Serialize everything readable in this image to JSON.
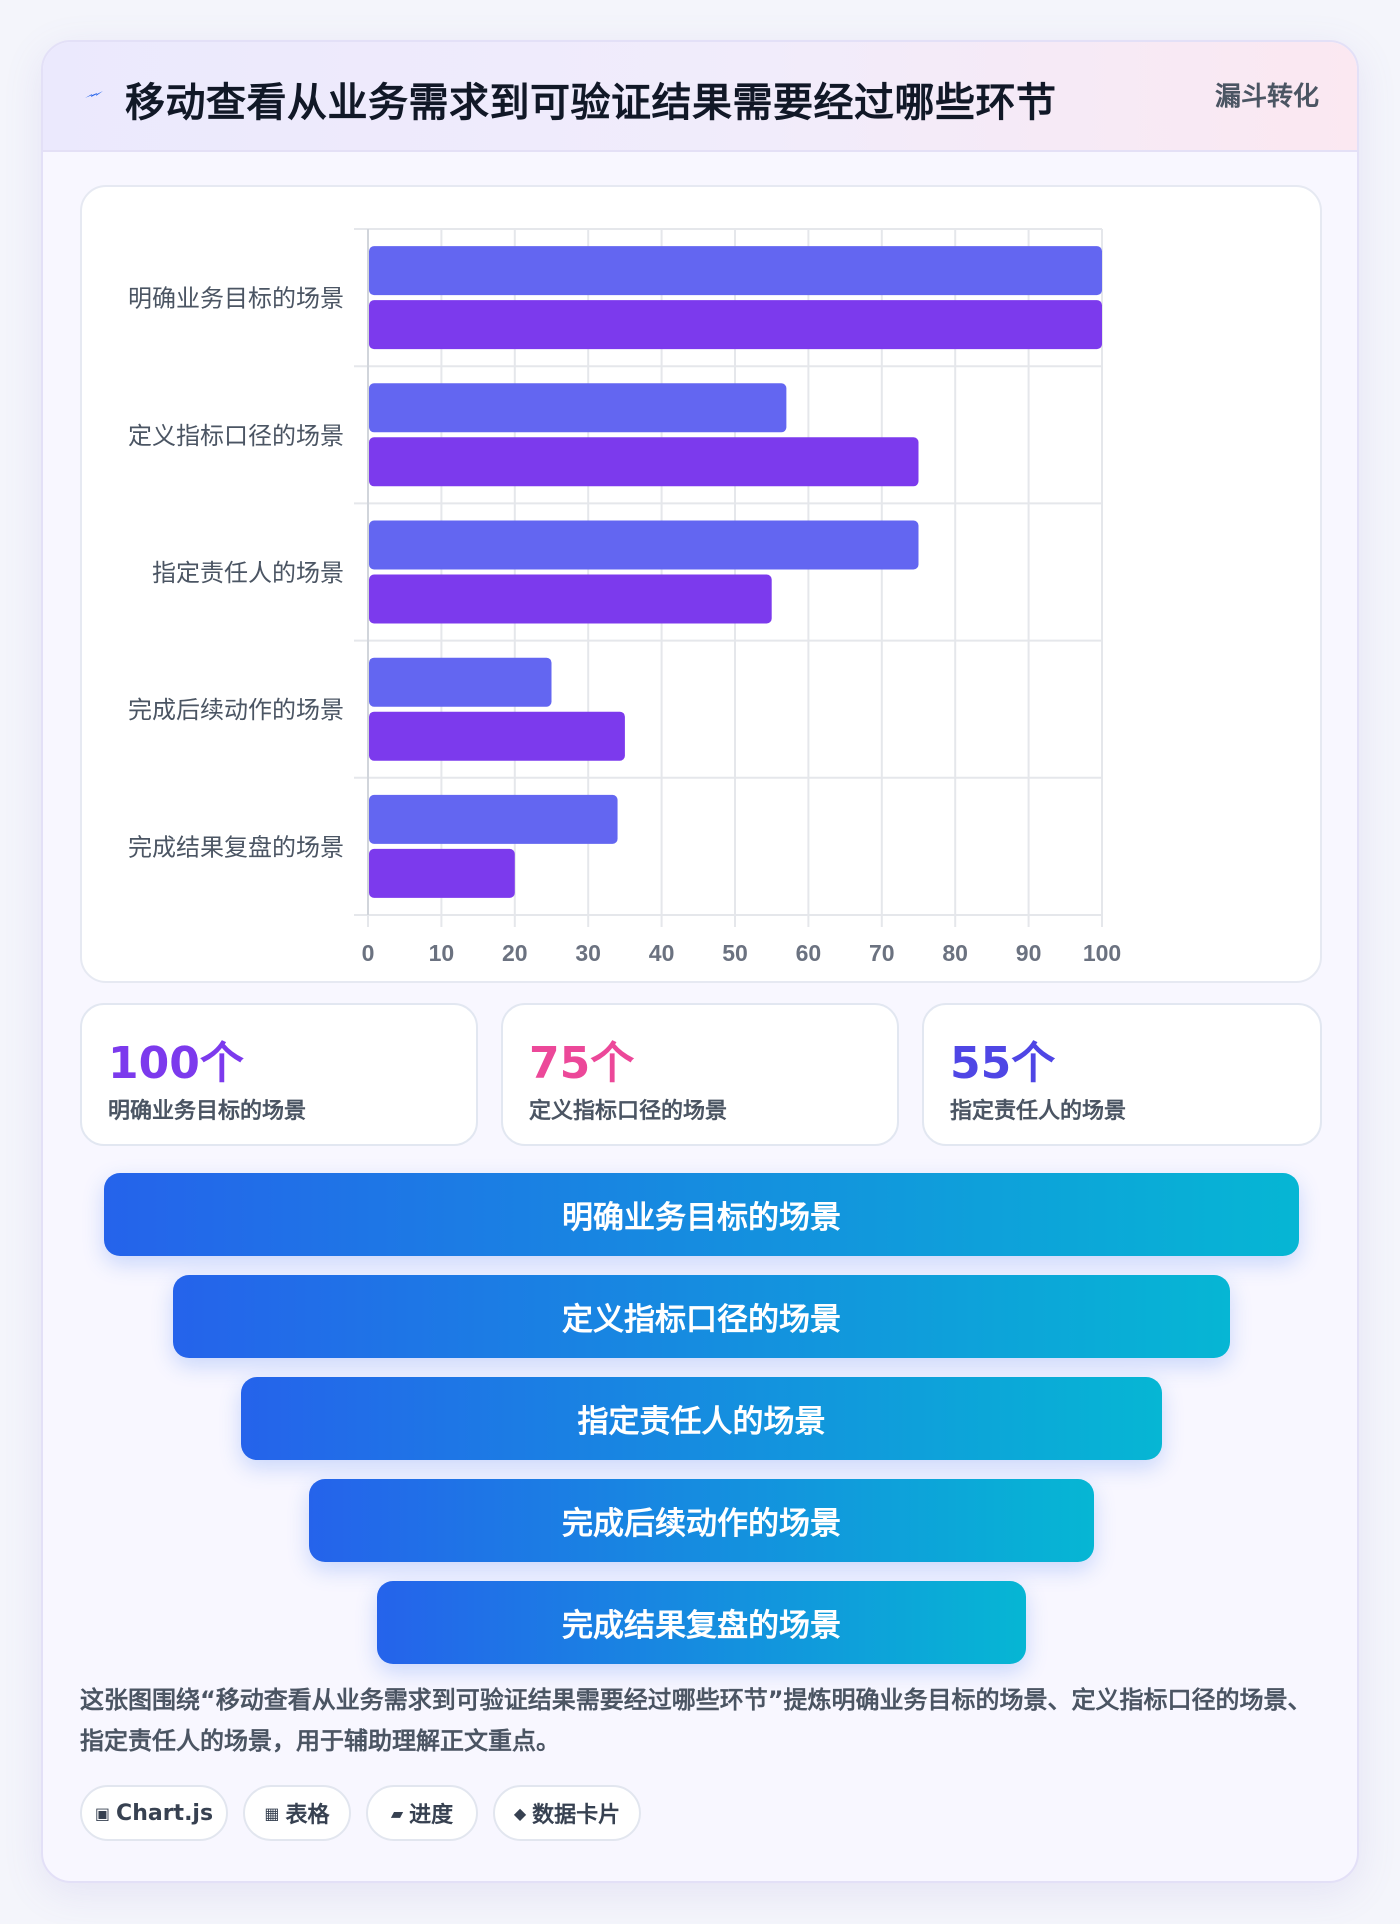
{
  "header": {
    "title": "移动查看从业务需求到可验证结果需要经过哪些环节",
    "tag": "漏斗转化",
    "icon": "bolt-icon"
  },
  "chart_data": {
    "type": "bar",
    "orientation": "horizontal",
    "categories": [
      "明确业务目标的场景",
      "定义指标口径的场景",
      "指定责任人的场景",
      "完成后续动作的场景",
      "完成结果复盘的场景"
    ],
    "series": [
      {
        "values": [
          100,
          57,
          75,
          25,
          34
        ],
        "color": "#6366f1"
      },
      {
        "values": [
          100,
          75,
          55,
          35,
          20
        ],
        "color": "#7c3aed"
      }
    ],
    "xlim": [
      0,
      100
    ],
    "xticks": [
      0,
      10,
      20,
      30,
      40,
      50,
      60,
      70,
      80,
      90,
      100
    ],
    "grid": true,
    "legend": "none"
  },
  "stats": [
    {
      "value": "100个",
      "label": "明确业务目标的场景",
      "color": "#7c3aed"
    },
    {
      "value": "75个",
      "label": "定义指标口径的场景",
      "color": "#ec4899"
    },
    {
      "value": "55个",
      "label": "指定责任人的场景",
      "color": "#4f46e5"
    }
  ],
  "funnel": [
    "明确业务目标的场景",
    "定义指标口径的场景",
    "指定责任人的场景",
    "完成后续动作的场景",
    "完成结果复盘的场景"
  ],
  "description": "这张图围绕“移动查看从业务需求到可验证结果需要经过哪些环节”提炼明确业务目标的场景、定义指标口径的场景、指定责任人的场景，用于辅助理解正文重点。",
  "chips": [
    {
      "icon": "▣",
      "label": "Chart.js"
    },
    {
      "icon": "▦",
      "label": "表格"
    },
    {
      "icon": "▰",
      "label": "进度"
    },
    {
      "icon": "◆",
      "label": "数据卡片"
    }
  ]
}
